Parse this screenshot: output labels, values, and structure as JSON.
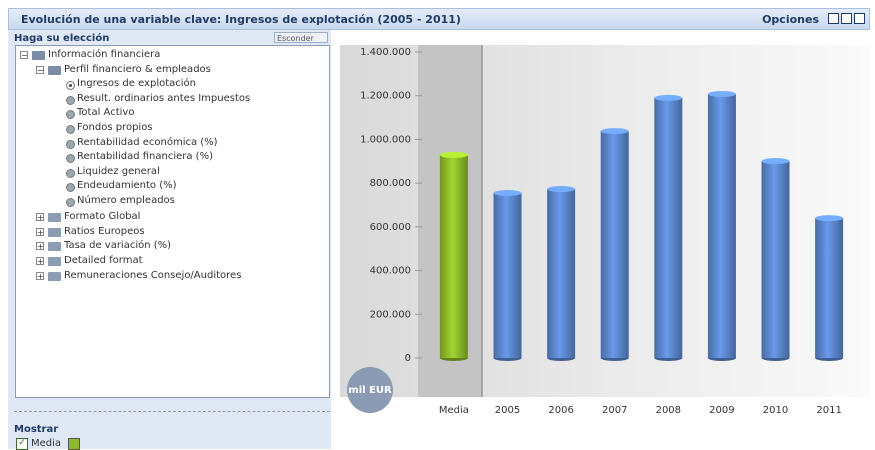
{
  "header": {
    "title": "Evolución de una variable clave: Ingresos de explotación (2005 - 2011)",
    "options": "Opciones"
  },
  "panel": {
    "title": "Haga su elección",
    "hide_button": "Esconder",
    "tree": [
      {
        "label": "Información financiera",
        "level": 0,
        "kind": "folder",
        "expanded": true
      },
      {
        "label": "Perfil financiero & empleados",
        "level": 1,
        "kind": "folder",
        "expanded": true
      },
      {
        "label": "Ingresos de explotación",
        "level": 2,
        "kind": "item",
        "selected": true
      },
      {
        "label": "Result. ordinarios antes Impuestos",
        "level": 2,
        "kind": "item",
        "selected": false
      },
      {
        "label": "Total Activo",
        "level": 2,
        "kind": "item",
        "selected": false
      },
      {
        "label": "Fondos propios",
        "level": 2,
        "kind": "item",
        "selected": false
      },
      {
        "label": "Rentabilidad económica (%)",
        "level": 2,
        "kind": "item",
        "selected": false
      },
      {
        "label": "Rentabilidad financiera (%)",
        "level": 2,
        "kind": "item",
        "selected": false
      },
      {
        "label": "Liquidez general",
        "level": 2,
        "kind": "item",
        "selected": false
      },
      {
        "label": "Endeudamiento (%)",
        "level": 2,
        "kind": "item",
        "selected": false
      },
      {
        "label": "Número empleados",
        "level": 2,
        "kind": "item",
        "selected": false
      },
      {
        "label": "Formato Global",
        "level": 1,
        "kind": "folder",
        "expanded": false
      },
      {
        "label": "Ratios Europeos",
        "level": 1,
        "kind": "folder",
        "expanded": false
      },
      {
        "label": "Tasa de variación (%)",
        "level": 1,
        "kind": "folder",
        "expanded": false
      },
      {
        "label": "Detailed format",
        "level": 1,
        "kind": "folder",
        "expanded": false
      },
      {
        "label": "Remuneraciones Consejo/Auditores",
        "level": 1,
        "kind": "folder",
        "expanded": false
      }
    ]
  },
  "show": {
    "title": "Mostrar",
    "options": [
      {
        "label": "Media",
        "checked": true,
        "color": "#8dba2a"
      }
    ]
  },
  "chart_data": {
    "type": "bar",
    "unit_label": "mil EUR",
    "categories": [
      "Media",
      "2005",
      "2006",
      "2007",
      "2008",
      "2009",
      "2010",
      "2011"
    ],
    "values": [
      929000,
      755000,
      773000,
      1038000,
      1190000,
      1208000,
      901000,
      640000
    ],
    "colors": [
      "#8dba2a",
      "#5b86cc",
      "#5b86cc",
      "#5b86cc",
      "#5b86cc",
      "#5b86cc",
      "#5b86cc",
      "#5b86cc"
    ],
    "ylim": [
      0,
      1400000
    ],
    "yticks": [
      0,
      {
        "value": 200000,
        "label": "200.000"
      },
      {
        "value": 400000,
        "label": "400.000"
      },
      {
        "value": 600000,
        "label": "600.000"
      },
      {
        "value": 800000,
        "label": "800.000"
      },
      {
        "value": 1000000,
        "label": "1.000.000"
      },
      {
        "value": 1200000,
        "label": "1.200.000"
      },
      {
        "value": 1400000,
        "label": "1.400.000"
      }
    ]
  }
}
